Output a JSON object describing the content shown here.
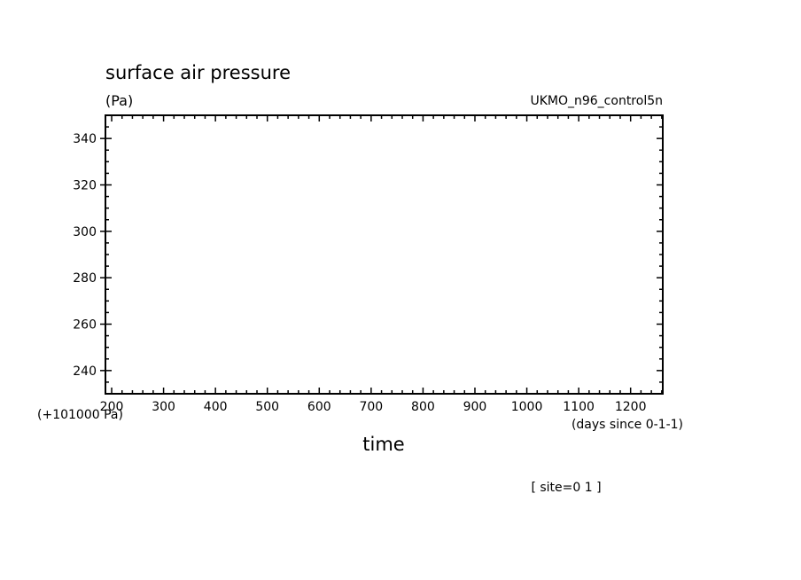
{
  "chart_data": {
    "type": "line",
    "title": "surface air pressure",
    "units_label": "(Pa)",
    "model_label": "UKMO_n96_control5n",
    "xlabel": "time",
    "x_units_label": "(days since 0-1-1)",
    "y_offset_label": "(+101000 Pa)",
    "footnote": "[ site=0 1 ]",
    "xlim": [
      188,
      1262
    ],
    "ylim": [
      230,
      350
    ],
    "x_ticks": [
      200,
      300,
      400,
      500,
      600,
      700,
      800,
      900,
      1000,
      1100,
      1200
    ],
    "x_tick_labels": [
      "200",
      "300",
      "400",
      "500",
      "600",
      "700",
      "800",
      "900",
      "1000",
      "1100",
      "1200"
    ],
    "y_ticks": [
      240,
      260,
      280,
      300,
      320,
      340
    ],
    "y_tick_labels": [
      "240",
      "260",
      "280",
      "300",
      "320",
      "340"
    ],
    "grid": false,
    "series": []
  }
}
